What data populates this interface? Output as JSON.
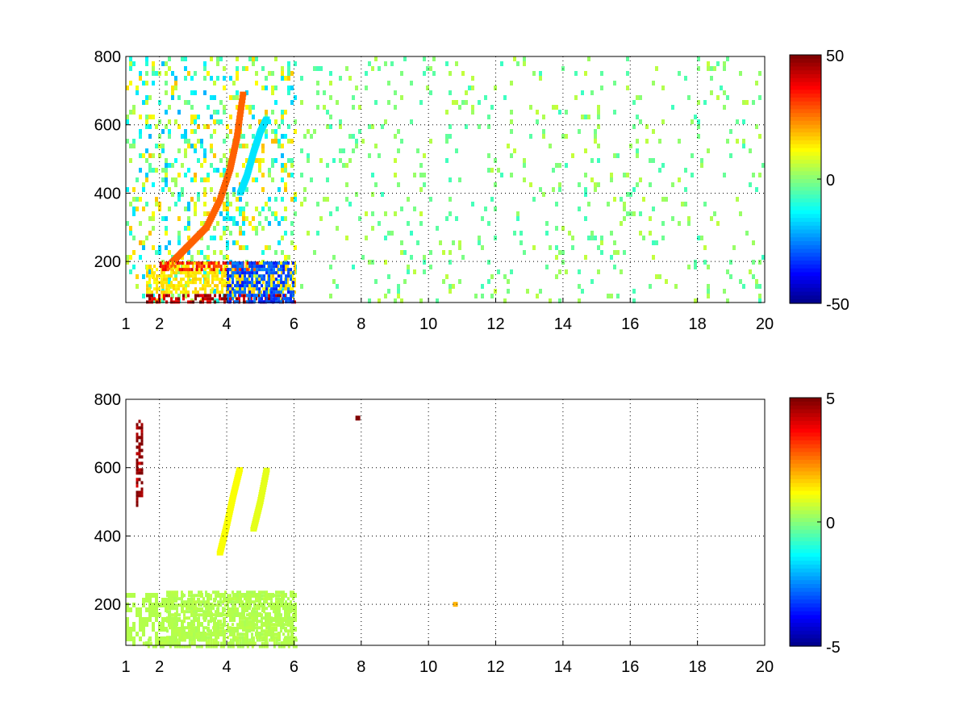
{
  "chart_data": [
    {
      "type": "heatmap",
      "x_ticks": [
        "1",
        "2",
        "4",
        "6",
        "8",
        "10",
        "12",
        "14",
        "16",
        "18",
        "20"
      ],
      "x_tick_values": [
        1,
        2,
        4,
        6,
        8,
        10,
        12,
        14,
        16,
        18,
        20
      ],
      "y_ticks": [
        "200",
        "400",
        "600",
        "800"
      ],
      "y_tick_values": [
        200,
        400,
        600,
        800
      ],
      "xlim": [
        1,
        20
      ],
      "ylim": [
        80,
        800
      ],
      "grid": true,
      "colormap": "jet",
      "colorbar": {
        "range": [
          -50,
          50
        ],
        "tick_labels": [
          "50",
          "0",
          "-50"
        ],
        "tick_values": [
          50,
          0,
          -50
        ]
      },
      "features": [
        {
          "name": "ridge_a",
          "x": [
            2.2,
            2.6,
            3.0,
            3.4,
            3.8,
            4.1,
            4.3,
            4.5
          ],
          "y": [
            180,
            220,
            260,
            300,
            380,
            470,
            560,
            700
          ],
          "value": 28
        },
        {
          "name": "ridge_b",
          "x": [
            4.4,
            4.6,
            4.8,
            5.0,
            5.2
          ],
          "y": [
            400,
            450,
            520,
            580,
            620
          ],
          "value": -15
        },
        {
          "name": "band_low",
          "x_range": [
            1.6,
            6.0
          ],
          "y_range": [
            80,
            105
          ],
          "value": 45
        },
        {
          "name": "band_mid",
          "x_range": [
            1.6,
            6.0
          ],
          "y_range": [
            110,
            200
          ],
          "value": 15
        },
        {
          "name": "band_200",
          "x_range": [
            2.0,
            5.0
          ],
          "y_range": [
            180,
            200
          ],
          "value": 35
        },
        {
          "name": "band_right_neg",
          "x_range": [
            4.0,
            6.0
          ],
          "y_range": [
            80,
            200
          ],
          "value": -30
        }
      ]
    },
    {
      "type": "heatmap",
      "x_ticks": [
        "1",
        "2",
        "4",
        "6",
        "8",
        "10",
        "12",
        "14",
        "16",
        "18",
        "20"
      ],
      "x_tick_values": [
        1,
        2,
        4,
        6,
        8,
        10,
        12,
        14,
        16,
        18,
        20
      ],
      "y_ticks": [
        "200",
        "400",
        "600",
        "800"
      ],
      "y_tick_values": [
        200,
        400,
        600,
        800
      ],
      "xlim": [
        1,
        20
      ],
      "ylim": [
        80,
        800
      ],
      "grid": true,
      "colormap": "jet",
      "colorbar": {
        "range": [
          -5,
          5
        ],
        "tick_labels": [
          "5",
          "0",
          "-5"
        ],
        "tick_values": [
          5,
          0,
          -5
        ]
      },
      "features": [
        {
          "name": "ridge_a",
          "x": [
            3.8,
            4.0,
            4.2,
            4.4
          ],
          "y": [
            350,
            430,
            520,
            600
          ],
          "value": 1.2
        },
        {
          "name": "ridge_b",
          "x": [
            4.8,
            5.0,
            5.2
          ],
          "y": [
            420,
            500,
            600
          ],
          "value": 1.0
        },
        {
          "name": "band_low",
          "x_range": [
            1.5,
            6.1
          ],
          "y_range": [
            80,
            100
          ],
          "value": 0.5
        },
        {
          "name": "band_mid",
          "x_range": [
            2.2,
            6.0
          ],
          "y_range": [
            100,
            240
          ],
          "value": 0.5
        },
        {
          "name": "streak_1",
          "x_range": [
            1.3,
            1.45
          ],
          "y_range": [
            490,
            740
          ],
          "value": 5
        },
        {
          "name": "spot_1",
          "x": 10.8,
          "y": 200,
          "value": 2
        },
        {
          "name": "spot_2",
          "x": 7.9,
          "y": 745,
          "value": 5
        }
      ]
    }
  ]
}
